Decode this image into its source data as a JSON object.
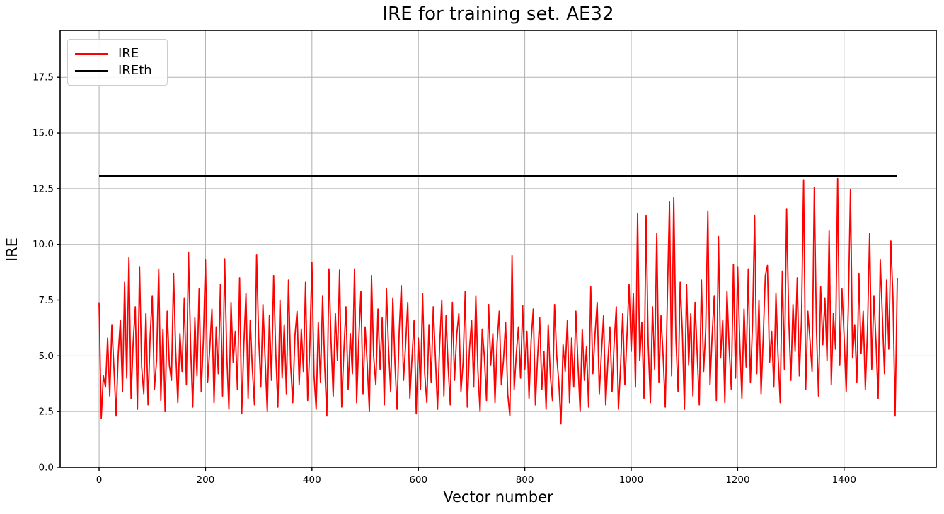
{
  "figure": {
    "title": "IRE for training set. AE32",
    "xlabel": "Vector number",
    "ylabel": "IRE",
    "legend": [
      {
        "label": "IRE",
        "color": "#ff0000",
        "linewidth": 3
      },
      {
        "label": "IREth",
        "color": "#000000",
        "linewidth": 3
      }
    ],
    "legend_position": "upper left",
    "background": "#ffffff",
    "grid_color": "#b0b0b0",
    "spine_color": "#000000"
  },
  "chart_data": {
    "type": "line",
    "title": "IRE for training set. AE32",
    "xlabel": "Vector number",
    "ylabel": "IRE",
    "xlim": [
      -73.2,
      1573.2
    ],
    "ylim": [
      0,
      19.6
    ],
    "xticks": [
      0,
      200,
      400,
      600,
      800,
      1000,
      1200,
      1400
    ],
    "yticks": [
      0.0,
      2.5,
      5.0,
      7.5,
      10.0,
      12.5,
      15.0,
      17.5
    ],
    "grid": true,
    "legend_position": "upper left",
    "threshold": {
      "name": "IREth",
      "value": 13.05,
      "x_start": 0,
      "x_end": 1500,
      "color": "#000000",
      "linewidth": 3
    },
    "series": [
      {
        "name": "IRE",
        "color": "#ff0000",
        "linewidth": 1.8,
        "x_start": 0,
        "x_step": 4,
        "values": [
          7.4,
          2.2,
          4.1,
          3.6,
          5.8,
          3.2,
          6.4,
          4.4,
          2.3,
          5.1,
          6.6,
          3.4,
          8.3,
          4.0,
          9.4,
          3.1,
          5.6,
          7.2,
          2.6,
          9.0,
          4.5,
          3.3,
          6.9,
          2.8,
          5.9,
          7.7,
          3.5,
          4.8,
          8.9,
          3.0,
          6.2,
          2.5,
          7.0,
          4.6,
          3.9,
          8.7,
          5.2,
          2.9,
          6.0,
          4.3,
          7.6,
          3.7,
          9.65,
          5.4,
          2.7,
          6.7,
          4.1,
          8.0,
          3.4,
          5.7,
          9.3,
          3.8,
          5.3,
          7.1,
          2.9,
          6.3,
          4.2,
          8.2,
          3.2,
          9.35,
          5.0,
          2.6,
          7.4,
          4.7,
          6.1,
          3.5,
          8.5,
          2.4,
          5.5,
          7.8,
          3.1,
          6.6,
          4.4,
          2.8,
          9.55,
          5.8,
          3.6,
          7.3,
          4.9,
          2.5,
          6.8,
          3.9,
          8.6,
          5.1,
          2.7,
          7.5,
          4.0,
          6.4,
          3.3,
          8.4,
          4.6,
          2.9,
          5.9,
          7.0,
          3.7,
          6.2,
          4.3,
          8.3,
          3.0,
          5.4,
          9.2,
          4.1,
          2.6,
          6.5,
          3.8,
          7.7,
          4.5,
          2.3,
          8.9,
          5.6,
          3.2,
          6.9,
          4.8,
          8.85,
          2.7,
          5.2,
          7.2,
          3.5,
          6.0,
          4.2,
          8.9,
          2.9,
          5.7,
          7.9,
          3.3,
          6.3,
          4.6,
          2.5,
          8.6,
          5.0,
          3.7,
          7.1,
          4.4,
          6.7,
          2.8,
          8.0,
          5.3,
          3.4,
          7.6,
          4.7,
          2.6,
          6.1,
          8.15,
          3.9,
          5.5,
          7.4,
          3.1,
          4.9,
          6.6,
          2.4,
          5.8,
          3.5,
          7.8,
          4.2,
          2.9,
          6.4,
          3.8,
          7.2,
          4.9,
          2.6,
          5.5,
          7.5,
          3.2,
          6.8,
          4.5,
          2.8,
          7.4,
          3.9,
          5.9,
          6.9,
          3.4,
          4.7,
          7.9,
          2.7,
          5.3,
          6.6,
          3.6,
          7.7,
          4.3,
          2.5,
          6.2,
          5.0,
          3.0,
          7.3,
          4.6,
          6.0,
          2.9,
          5.6,
          7.0,
          3.7,
          4.8,
          6.5,
          3.3,
          2.3,
          9.5,
          3.5,
          5.1,
          6.3,
          4.0,
          7.26,
          4.4,
          6.1,
          3.1,
          5.7,
          7.1,
          2.8,
          4.9,
          6.7,
          3.5,
          5.2,
          2.6,
          6.4,
          4.1,
          3.0,
          7.3,
          5.0,
          3.8,
          1.95,
          5.5,
          4.3,
          6.6,
          2.9,
          5.8,
          3.6,
          7.0,
          4.6,
          2.5,
          6.2,
          3.9,
          5.4,
          2.7,
          8.1,
          4.2,
          6.0,
          7.4,
          3.3,
          5.1,
          6.8,
          2.8,
          4.7,
          6.3,
          3.4,
          5.6,
          7.2,
          2.6,
          4.5,
          6.9,
          3.7,
          5.9,
          8.2,
          5.2,
          7.8,
          3.6,
          11.4,
          4.8,
          6.5,
          3.1,
          11.3,
          5.5,
          2.9,
          7.2,
          4.4,
          10.5,
          3.8,
          6.8,
          5.0,
          2.7,
          7.6,
          11.9,
          4.1,
          12.1,
          5.8,
          3.4,
          8.3,
          6.1,
          2.6,
          8.2,
          4.6,
          6.9,
          3.2,
          7.4,
          5.1,
          2.8,
          8.4,
          4.3,
          6.2,
          11.5,
          3.7,
          5.9,
          7.7,
          3.0,
          10.35,
          4.9,
          6.6,
          2.9,
          7.9,
          5.4,
          3.5,
          9.1,
          4.0,
          9.0,
          5.6,
          3.1,
          7.1,
          4.5,
          8.9,
          3.8,
          6.4,
          11.3,
          4.2,
          7.5,
          3.3,
          5.8,
          8.6,
          9.05,
          4.7,
          6.1,
          3.6,
          7.8,
          5.0,
          2.9,
          8.8,
          4.4,
          11.6,
          6.7,
          3.9,
          7.3,
          5.2,
          8.5,
          4.1,
          6.6,
          12.9,
          3.5,
          7.0,
          5.7,
          4.3,
          12.55,
          6.2,
          3.2,
          8.1,
          5.5,
          7.6,
          4.8,
          10.6,
          3.7,
          6.9,
          5.3,
          12.95,
          4.6,
          8.0,
          5.9,
          3.4,
          7.2,
          12.45,
          4.9,
          6.4,
          3.8,
          8.7,
          5.1,
          7.0,
          3.5,
          6.1,
          10.5,
          4.4,
          7.7,
          5.6,
          3.1,
          9.3,
          6.8,
          4.2,
          8.4,
          5.3,
          10.15,
          7.6,
          2.3,
          8.5
        ]
      }
    ]
  }
}
